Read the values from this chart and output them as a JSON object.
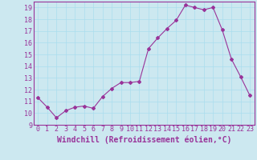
{
  "x": [
    0,
    1,
    2,
    3,
    4,
    5,
    6,
    7,
    8,
    9,
    10,
    11,
    12,
    13,
    14,
    15,
    16,
    17,
    18,
    19,
    20,
    21,
    22,
    23
  ],
  "y": [
    11.3,
    10.5,
    9.6,
    10.2,
    10.5,
    10.6,
    10.4,
    11.4,
    12.1,
    12.6,
    12.6,
    12.7,
    15.5,
    16.4,
    17.2,
    17.9,
    19.2,
    19.0,
    18.8,
    19.0,
    17.1,
    14.6,
    13.1,
    11.5
  ],
  "line_color": "#993399",
  "marker": "D",
  "marker_size": 2,
  "bg_color": "#cce8f0",
  "grid_color": "#aaddee",
  "xlabel": "Windchill (Refroidissement éolien,°C)",
  "xlabel_color": "#993399",
  "xlabel_fontsize": 7,
  "tick_color": "#993399",
  "tick_fontsize": 6,
  "ylim": [
    9,
    19.5
  ],
  "xlim": [
    -0.5,
    23.5
  ],
  "yticks": [
    9,
    10,
    11,
    12,
    13,
    14,
    15,
    16,
    17,
    18,
    19
  ],
  "xticks": [
    0,
    1,
    2,
    3,
    4,
    5,
    6,
    7,
    8,
    9,
    10,
    11,
    12,
    13,
    14,
    15,
    16,
    17,
    18,
    19,
    20,
    21,
    22,
    23
  ]
}
